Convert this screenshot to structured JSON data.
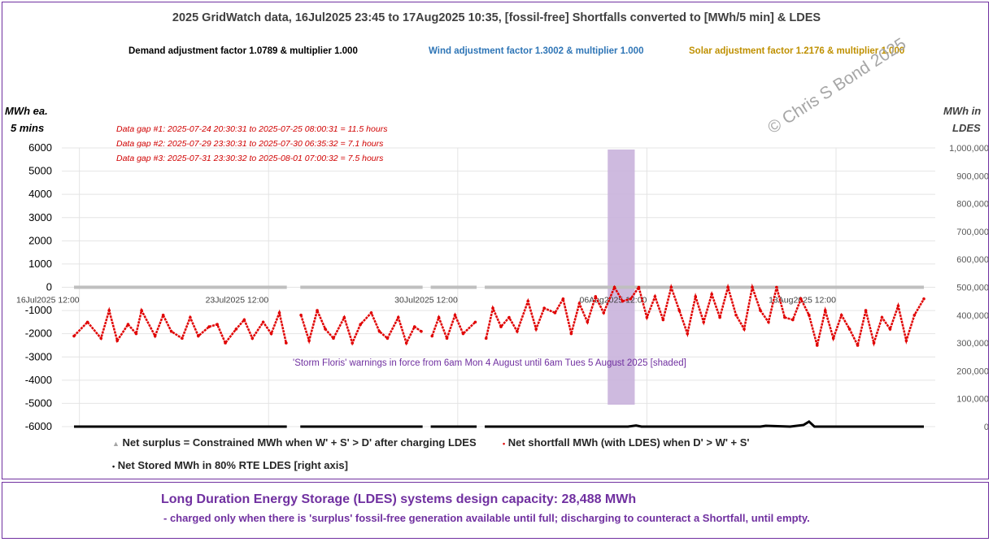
{
  "title": "2025 GridWatch data, 16Jul2025 23:45 to 17Aug2025 10:35,  [fossil-free] Shortfalls converted to [MWh/5 min] & LDES",
  "adjustments": {
    "demand": "Demand adjustment factor 1.0789 & multiplier 1.000",
    "wind": "Wind adjustment factor 1.3002 & multiplier 1.000",
    "solar": "Solar adjustment factor 1.2176 & multiplier 1.000"
  },
  "left_axis_title": [
    "MWh ea.",
    "5 mins"
  ],
  "right_axis_title": [
    "MWh in",
    "LDES"
  ],
  "data_gaps": [
    "Data gap #1:  2025-07-24 20:30:31 to  2025-07-25 08:00:31 = 11.5 hours",
    "Data gap #2:  2025-07-29 23:30:31 to  2025-07-30 06:35:32 = 7.1 hours",
    "Data gap #3:  2025-07-31 23:30:32 to  2025-08-01 07:00:32 = 7.5 hours"
  ],
  "storm_note": "'Storm Floris' warnings in force from 6am Mon 4 August until 6am Tues 5 August 2025 [shaded]",
  "watermark": "© Chris S Bond  2025",
  "legend": {
    "surplus": "Net surplus = Constrained MWh when W' + S' > D' after charging LDES",
    "shortfall": "Net shortfall MWh (with LDES) when D' > W' + S'",
    "stored": "Net Stored MWh in 80% RTE LDES  [right axis]"
  },
  "ldes": {
    "title": "Long Duration Energy Storage (LDES) systems design capacity:  28,488 MWh",
    "subtitle": "- charged only when there is 'surplus' fossil-free generation available until full; discharging to counteract a Shortfall, until empty."
  },
  "colors": {
    "title": "#404040",
    "demand": "#000000",
    "wind": "#2e75b6",
    "solar": "#bf9000",
    "shortfall": "#e00000",
    "surplus": "#bfbfbf",
    "stored": "#000000",
    "storm_shade": "#c9b3dc",
    "frame": "#7030a0"
  },
  "chart_data": {
    "type": "scatter",
    "x_range": [
      "2025-07-16 23:45",
      "2025-08-17 10:35"
    ],
    "x_tick_labels": [
      "16Jul2025 12:00",
      "23Jul2025 12:00",
      "30Jul2025 12:00",
      "06Aug2025 12:00",
      "13Aug2025 12:00"
    ],
    "x_tick_days": [
      0,
      7,
      14,
      21,
      28
    ],
    "left_axis": {
      "label": "MWh ea. 5 mins",
      "ylim": [
        -6000,
        6000
      ],
      "ticks": [
        6000,
        5000,
        4000,
        3000,
        2000,
        1000,
        0,
        -1000,
        -2000,
        -3000,
        -4000,
        -5000,
        -6000
      ],
      "tick_labels": [
        "6000",
        "5000",
        "4000",
        "3000",
        "2000",
        "1000",
        "0",
        "-1000",
        "-2000",
        "-3000",
        "-4000",
        "-5000",
        "-6000"
      ]
    },
    "right_axis": {
      "label": "MWh in LDES",
      "ylim": [
        0,
        1000000
      ],
      "ticks": [
        1000000,
        900000,
        800000,
        700000,
        600000,
        500000,
        400000,
        300000,
        200000,
        100000,
        0
      ],
      "tick_labels": [
        "1,000,000",
        "900,000",
        "800,000",
        "700,000",
        "600,000",
        "500,000",
        "400,000",
        "300,000",
        "200,000",
        "100,000",
        "0"
      ]
    },
    "storm_window_days": [
      19.75,
      20.75
    ],
    "data_gap_days": [
      [
        7.875,
        8.375
      ],
      [
        12.9,
        13.2
      ],
      [
        14.9,
        15.2
      ]
    ],
    "series": [
      {
        "name": "Net surplus = Constrained MWh when W' + S' > D' after charging LDES",
        "axis": "left",
        "x_days": [
          0.0,
          7.875,
          8.375,
          12.9,
          13.2,
          14.9,
          15.2,
          31.45
        ],
        "values": [
          0,
          0,
          0,
          0,
          0,
          0,
          0,
          0
        ]
      },
      {
        "name": "Net shortfall MWh (with LDES) when D' > W' + S'",
        "axis": "left",
        "x_days": [
          0.0,
          0.5,
          1.0,
          1.3,
          1.6,
          2.0,
          2.3,
          2.5,
          3.0,
          3.3,
          3.6,
          4.0,
          4.3,
          4.6,
          5.0,
          5.3,
          5.6,
          6.0,
          6.3,
          6.6,
          7.0,
          7.3,
          7.6,
          7.85,
          8.4,
          8.7,
          9.0,
          9.3,
          9.6,
          10.0,
          10.3,
          10.6,
          11.0,
          11.3,
          11.6,
          12.0,
          12.3,
          12.6,
          12.85,
          13.25,
          13.5,
          13.8,
          14.1,
          14.4,
          14.85,
          15.25,
          15.5,
          15.8,
          16.1,
          16.4,
          16.8,
          17.1,
          17.4,
          17.8,
          18.1,
          18.4,
          18.7,
          19.0,
          19.3,
          19.6,
          20.0,
          20.3,
          20.6,
          20.9,
          21.2,
          21.5,
          21.8,
          22.1,
          22.4,
          22.7,
          23.0,
          23.3,
          23.6,
          23.9,
          24.2,
          24.5,
          24.8,
          25.1,
          25.4,
          25.7,
          26.0,
          26.3,
          26.6,
          26.9,
          27.2,
          27.5,
          27.8,
          28.1,
          28.4,
          28.7,
          29.0,
          29.3,
          29.6,
          29.9,
          30.2,
          30.5,
          30.8,
          31.1,
          31.45
        ],
        "values": [
          -2100,
          -1500,
          -2200,
          -1000,
          -2300,
          -1600,
          -2000,
          -1000,
          -2100,
          -1200,
          -1900,
          -2200,
          -1300,
          -2100,
          -1700,
          -1600,
          -2400,
          -1800,
          -1400,
          -2200,
          -1500,
          -2000,
          -1100,
          -2400,
          -1200,
          -2300,
          -1000,
          -1800,
          -2200,
          -1300,
          -2400,
          -1600,
          -1100,
          -1900,
          -2200,
          -1300,
          -2400,
          -1700,
          -1900,
          -2100,
          -1300,
          -2200,
          -1200,
          -2000,
          -1500,
          -2200,
          -900,
          -1700,
          -1300,
          -1900,
          -600,
          -1800,
          -900,
          -1100,
          -500,
          -2000,
          -700,
          -1500,
          -400,
          -1100,
          0,
          -600,
          -500,
          0,
          -1300,
          -400,
          -1400,
          0,
          -1000,
          -2000,
          -400,
          -1500,
          -300,
          -1300,
          0,
          -1200,
          -1800,
          0,
          -1000,
          -1500,
          0,
          -1300,
          -1400,
          -500,
          -1200,
          -2500,
          -1000,
          -2200,
          -1200,
          -1800,
          -2500,
          -1000,
          -2400,
          -1300,
          -1800,
          -800,
          -2300,
          -1200,
          -500
        ]
      },
      {
        "name": "Net Stored MWh in 80% RTE LDES  [right axis]",
        "axis": "right",
        "x_days": [
          0.0,
          7.875,
          8.375,
          12.9,
          13.2,
          14.9,
          15.2,
          20.5,
          20.8,
          21.0,
          25.4,
          25.6,
          26.5,
          27.0,
          27.2,
          27.4,
          31.45
        ],
        "values": [
          0,
          0,
          0,
          0,
          0,
          0,
          0,
          0,
          4000,
          0,
          0,
          3000,
          0,
          6000,
          18000,
          0,
          0
        ]
      }
    ]
  }
}
